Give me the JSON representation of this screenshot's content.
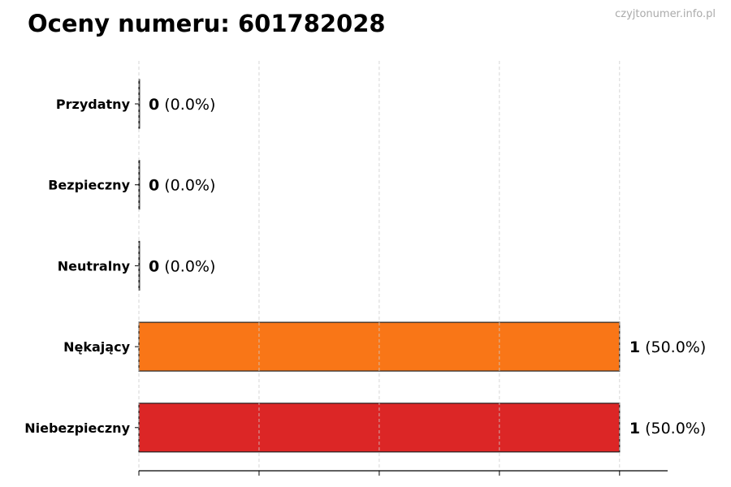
{
  "title": "Oceny numeru: 601782028",
  "watermark": "czyjtonumer.info.pl",
  "chart_data": {
    "type": "bar",
    "orientation": "horizontal",
    "title": "Oceny numeru: 601782028",
    "categories": [
      "Przydatny",
      "Bezpieczny",
      "Neutralny",
      "Nękający",
      "Niebezpieczny"
    ],
    "values": [
      0,
      0,
      0,
      1,
      1
    ],
    "labels": [
      "(0.0%)",
      "(0.0%)",
      "(0.0%)",
      "(50.0%)",
      "(50.0%)"
    ],
    "colors": [
      "#2ca02c",
      "#1f77b4",
      "#7f7f7f",
      "#f97617",
      "#dc2626"
    ],
    "xlim": [
      0,
      1.1
    ],
    "xticks": [
      0,
      0.25,
      0.5,
      0.75,
      1
    ],
    "xtick_labels_visible": false,
    "grid": "x, dashed",
    "xlabel": "",
    "ylabel": ""
  }
}
